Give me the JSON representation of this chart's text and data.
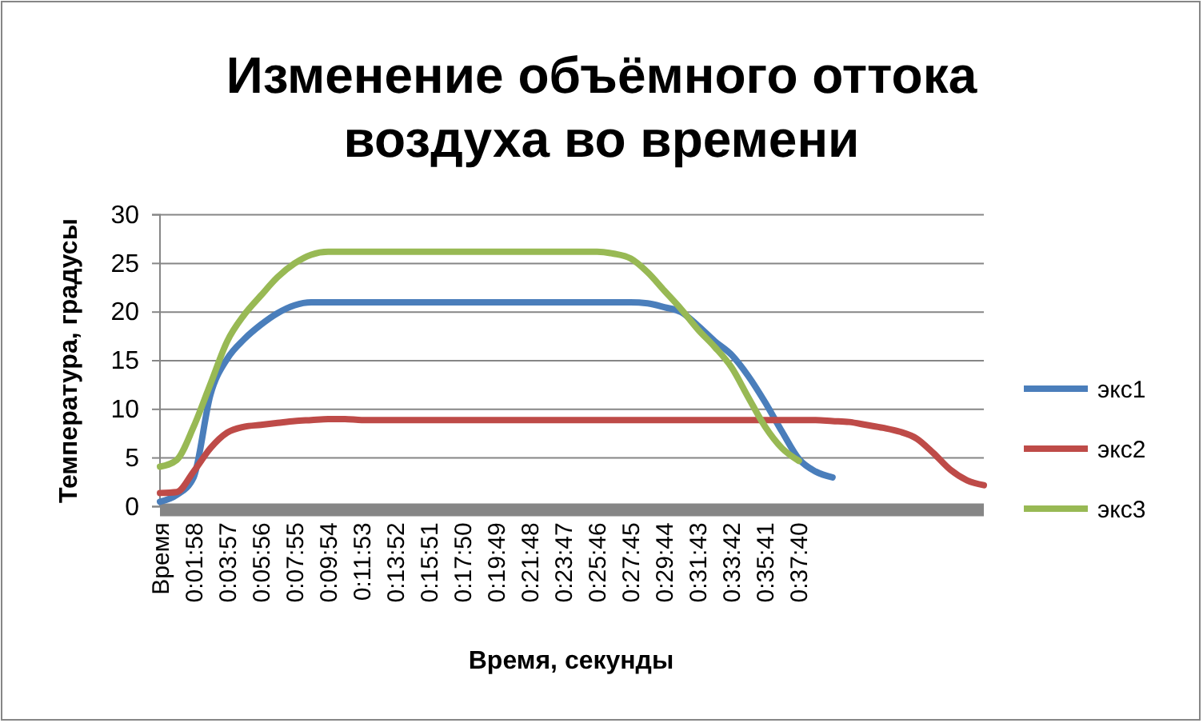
{
  "chart_data": {
    "type": "line",
    "title": "Изменение объёмного оттока воздуха во времени",
    "xlabel": "Время, секунды",
    "ylabel": "Температура, градусы",
    "categories": [
      "Время",
      null,
      "0:01:58",
      null,
      "0:03:57",
      null,
      "0:05:56",
      null,
      "0:07:55",
      null,
      "0:09:54",
      null,
      "0:11:53",
      null,
      "0:13:52",
      null,
      "0:15:51",
      null,
      "0:17:50",
      null,
      "0:19:49",
      null,
      "0:21:48",
      null,
      "0:23:47",
      null,
      "0:25:46",
      null,
      "0:27:45",
      null,
      "0:29:44",
      null,
      "0:31:43",
      null,
      "0:33:42",
      null,
      "0:35:41",
      null,
      "0:37:40",
      null,
      null,
      null,
      null,
      null,
      null,
      null,
      null,
      null,
      null,
      null
    ],
    "series": [
      {
        "name": "экс1",
        "color": "#4a7ebb",
        "values": [
          0.5,
          1.2,
          3.0,
          11.5,
          15.2,
          17.2,
          18.7,
          19.9,
          20.7,
          21.0,
          21.0,
          21.0,
          21.0,
          21.0,
          21.0,
          21.0,
          21.0,
          21.0,
          21.0,
          21.0,
          21.0,
          21.0,
          21.0,
          21.0,
          21.0,
          21.0,
          21.0,
          21.0,
          21.0,
          20.9,
          20.5,
          20.0,
          18.6,
          17.0,
          15.6,
          13.4,
          10.7,
          7.7,
          4.9,
          3.6,
          3.0,
          null,
          null,
          null,
          null,
          null,
          null,
          null,
          null,
          null
        ]
      },
      {
        "name": "экс2",
        "color": "#be4b48",
        "values": [
          1.4,
          1.5,
          3.6,
          6.0,
          7.6,
          8.2,
          8.4,
          8.6,
          8.8,
          8.9,
          9.0,
          9.0,
          8.9,
          8.9,
          8.9,
          8.9,
          8.9,
          8.9,
          8.9,
          8.9,
          8.9,
          8.9,
          8.9,
          8.9,
          8.9,
          8.9,
          8.9,
          8.9,
          8.9,
          8.9,
          8.9,
          8.9,
          8.9,
          8.9,
          8.9,
          8.9,
          8.9,
          8.9,
          8.9,
          8.9,
          8.8,
          8.7,
          8.4,
          8.1,
          7.7,
          7.0,
          5.5,
          3.8,
          2.7,
          2.2
        ]
      },
      {
        "name": "экс3",
        "color": "#98b954",
        "values": [
          4.1,
          4.8,
          8.2,
          12.6,
          17.0,
          19.7,
          21.7,
          23.6,
          25.0,
          25.9,
          26.2,
          26.2,
          26.2,
          26.2,
          26.2,
          26.2,
          26.2,
          26.2,
          26.2,
          26.2,
          26.2,
          26.2,
          26.2,
          26.2,
          26.2,
          26.2,
          26.2,
          26.0,
          25.5,
          24.1,
          22.2,
          20.3,
          18.2,
          16.4,
          14.3,
          11.2,
          8.2,
          6.0,
          4.7,
          null,
          null,
          null,
          null,
          null,
          null,
          null,
          null,
          null,
          null,
          null
        ]
      }
    ],
    "ylim": [
      0,
      30
    ],
    "yticks": [
      0,
      5,
      10,
      15,
      20,
      25,
      30
    ],
    "grid": "y",
    "legend": "right",
    "marker": "none",
    "line_style": "solid"
  }
}
